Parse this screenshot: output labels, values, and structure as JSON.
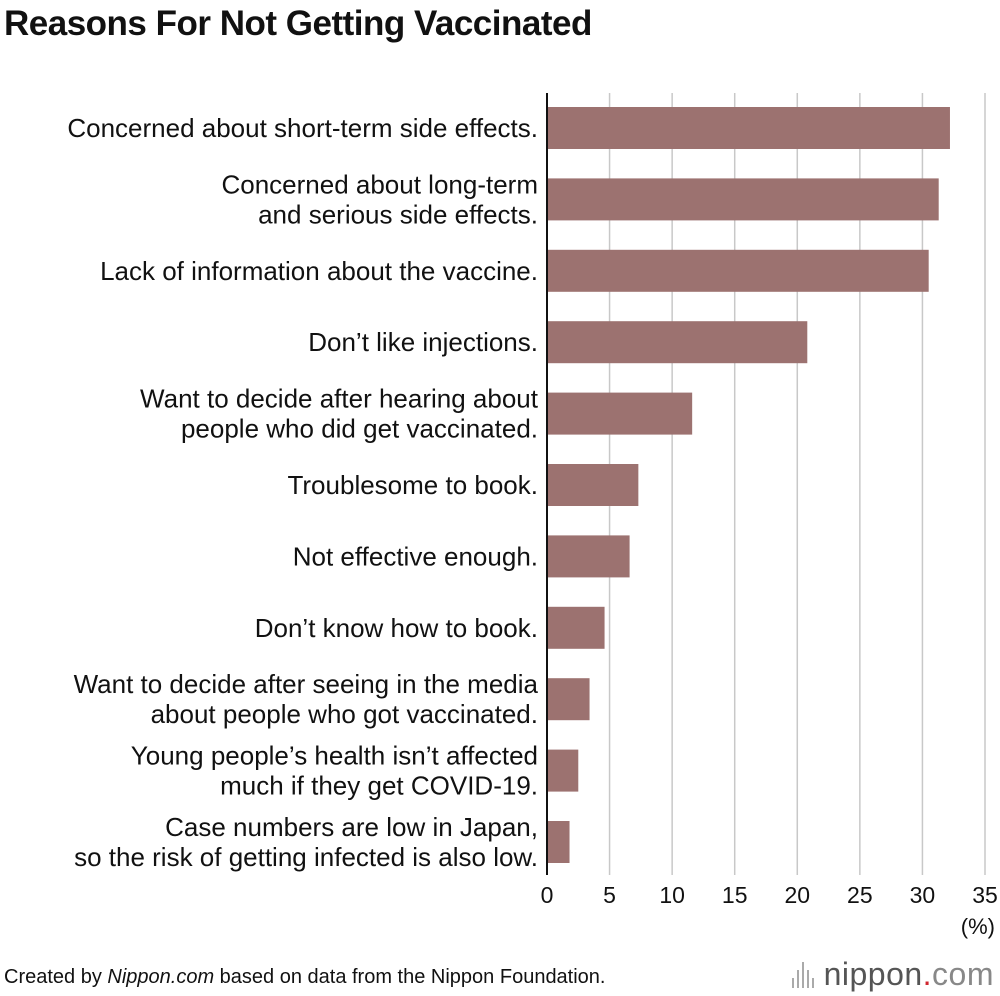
{
  "title": "Reasons For Not Getting Vaccinated",
  "unit_label": "(%)",
  "colors": {
    "bar": "#9c7270",
    "grid": "#c8c8c8",
    "axis": "#111111"
  },
  "footer": {
    "prefix": "Created by ",
    "source_name": "Nippon.com",
    "suffix": " based on data from the Nippon Foundation."
  },
  "brand": {
    "name_pre": "nippon",
    "dot": ".",
    "name_suf": "com",
    "icon": "soundwave-icon"
  },
  "chart_data": {
    "type": "bar",
    "orientation": "horizontal",
    "categories": [
      [
        "Concerned about short-term side effects."
      ],
      [
        "Concerned about long-term",
        "and serious side effects."
      ],
      [
        "Lack of information about the vaccine."
      ],
      [
        "Don’t like injections."
      ],
      [
        "Want to decide after hearing about",
        "people who did get vaccinated."
      ],
      [
        "Troublesome to book."
      ],
      [
        "Not effective enough."
      ],
      [
        "Don’t know how to book."
      ],
      [
        "Want to decide after seeing in the media",
        "about people who got vaccinated."
      ],
      [
        "Young people’s health isn’t affected",
        "much if they get COVID-19."
      ],
      [
        "Case numbers are low in Japan,",
        "so the risk of getting infected is also low."
      ]
    ],
    "values": [
      32.2,
      31.3,
      30.5,
      20.8,
      11.6,
      7.3,
      6.6,
      4.6,
      3.4,
      2.5,
      1.8
    ],
    "xlim": [
      0,
      35
    ],
    "xticks": [
      0,
      5,
      10,
      15,
      20,
      25,
      30,
      35
    ],
    "grid": true
  }
}
